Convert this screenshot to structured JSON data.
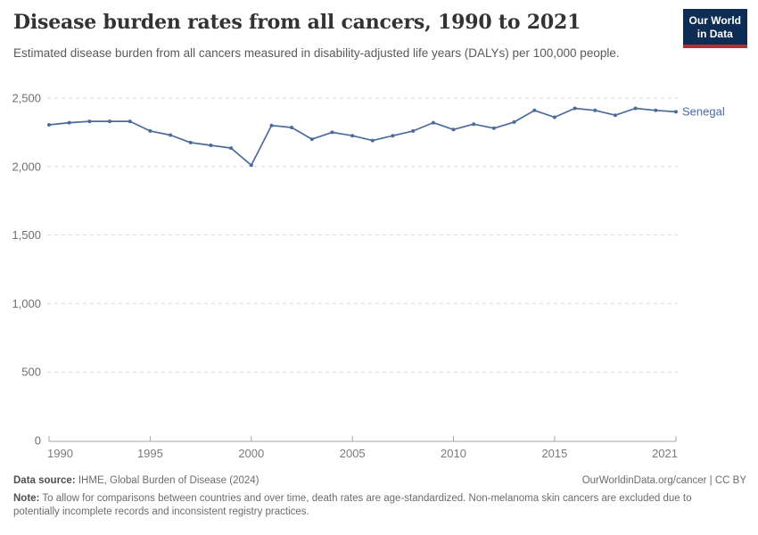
{
  "header": {
    "title": "Disease burden rates from all cancers, 1990 to 2021",
    "subtitle": "Estimated disease burden from all cancers measured in disability-adjusted life years (DALYs) per 100,000 people."
  },
  "logo": {
    "line1": "Our World",
    "line2": "in Data"
  },
  "colors": {
    "series_line": "#4C6A9C",
    "logo_background": "#0e2d54",
    "logo_accent": "#b5322d",
    "gridline": "#dadada",
    "axis": "#a6a6a6"
  },
  "chart_data": {
    "type": "line",
    "title": "Disease burden rates from all cancers, 1990 to 2021",
    "xlabel": "",
    "ylabel": "DALYs per 100,000 people",
    "xlim": [
      1990,
      2021
    ],
    "ylim": [
      0,
      2500
    ],
    "x_ticks": [
      1990,
      1995,
      2000,
      2005,
      2010,
      2015,
      2021
    ],
    "y_ticks": [
      0,
      500,
      1000,
      1500,
      2000,
      2500
    ],
    "grid": "horizontal-dashed",
    "legend_position": "end-of-line",
    "x": [
      1990,
      1991,
      1992,
      1993,
      1994,
      1995,
      1996,
      1997,
      1998,
      1999,
      2000,
      2001,
      2002,
      2003,
      2004,
      2005,
      2006,
      2007,
      2008,
      2009,
      2010,
      2011,
      2012,
      2013,
      2014,
      2015,
      2016,
      2017,
      2018,
      2019,
      2020,
      2021
    ],
    "series": [
      {
        "name": "Senegal",
        "color": "#4C6A9C",
        "values": [
          2305,
          2320,
          2330,
          2330,
          2330,
          2260,
          2230,
          2175,
          2155,
          2135,
          2010,
          2300,
          2285,
          2200,
          2250,
          2225,
          2190,
          2225,
          2260,
          2320,
          2270,
          2310,
          2280,
          2325,
          2410,
          2360,
          2425,
          2410,
          2375,
          2425,
          2410,
          2400
        ]
      }
    ]
  },
  "footer": {
    "datasource_label": "Data source:",
    "datasource": " IHME, Global Burden of Disease (2024)",
    "attribution": "OurWorldinData.org/cancer | CC BY",
    "note_label": "Note:",
    "note": " To allow for comparisons between countries and over time, death rates are age-standardized. Non-melanoma skin cancers are excluded due to potentially incomplete records and inconsistent registry practices."
  }
}
